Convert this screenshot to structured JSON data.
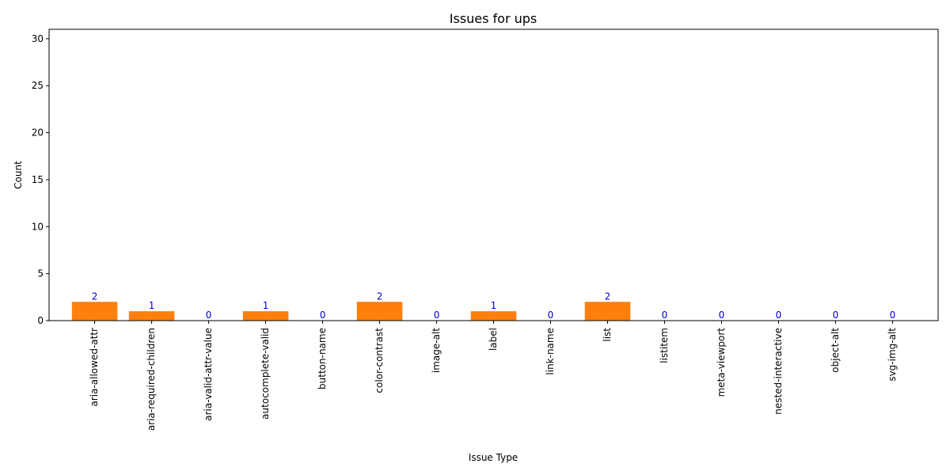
{
  "chart_data": {
    "type": "bar",
    "title": "Issues for ups",
    "xlabel": "Issue Type",
    "ylabel": "Count",
    "categories": [
      "aria-allowed-attr",
      "aria-required-children",
      "aria-valid-attr-value",
      "autocomplete-valid",
      "button-name",
      "color-contrast",
      "image-alt",
      "label",
      "link-name",
      "list",
      "listitem",
      "meta-viewport",
      "nested-interactive",
      "object-alt",
      "svg-img-alt"
    ],
    "values": [
      2,
      1,
      0,
      1,
      0,
      2,
      0,
      1,
      0,
      2,
      0,
      0,
      0,
      0,
      0
    ],
    "ylim": [
      0,
      31
    ],
    "yticks": [
      0,
      5,
      10,
      15,
      20,
      25,
      30
    ],
    "grid": false,
    "bar_color": "#ff7f0e",
    "label_color": "#0000cc",
    "x_tick_rotation": 90
  }
}
